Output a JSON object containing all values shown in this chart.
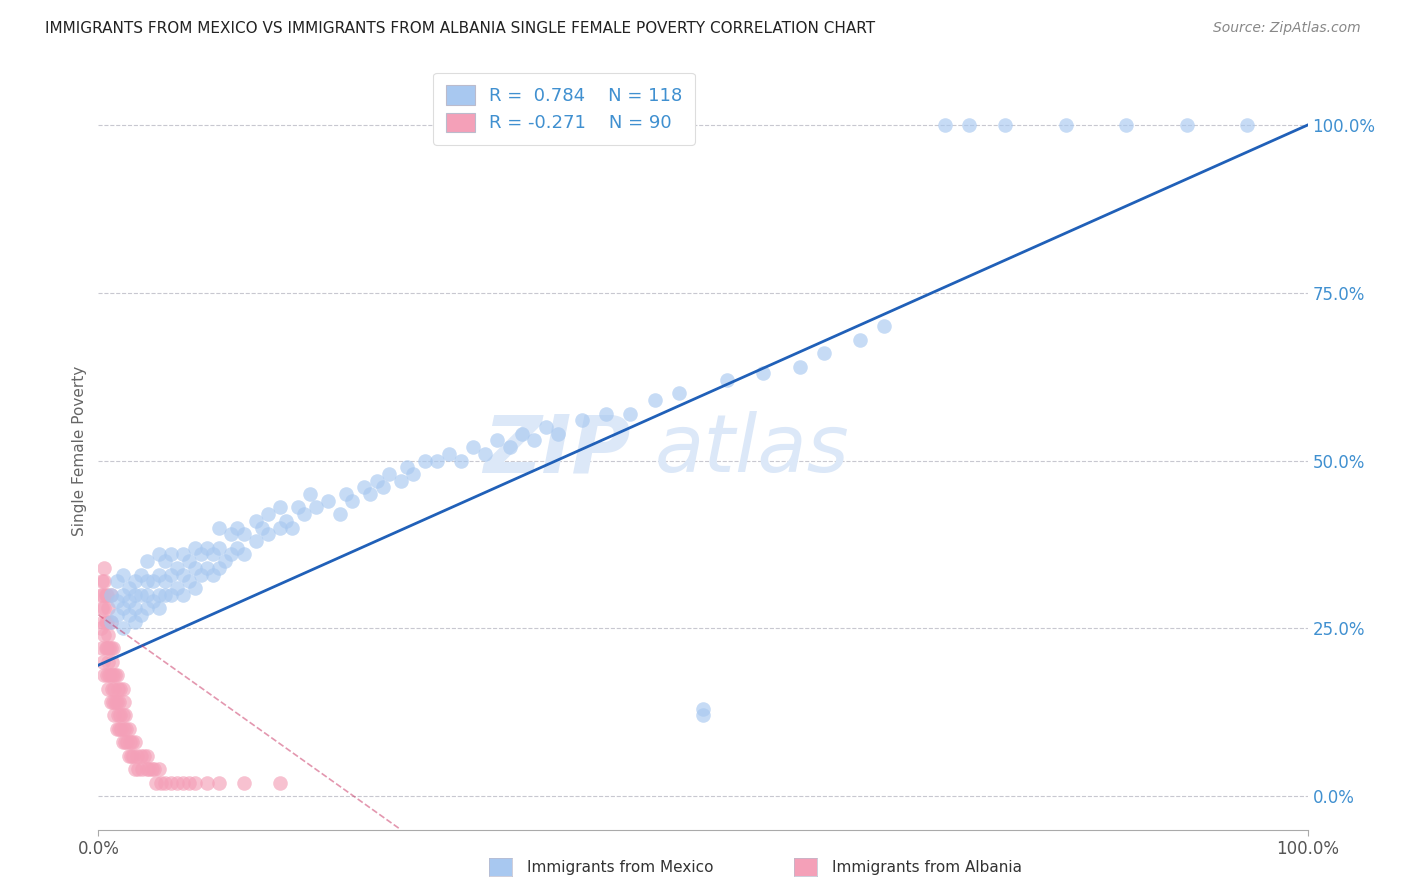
{
  "title": "IMMIGRANTS FROM MEXICO VS IMMIGRANTS FROM ALBANIA SINGLE FEMALE POVERTY CORRELATION CHART",
  "source": "Source: ZipAtlas.com",
  "ylabel": "Single Female Poverty",
  "legend_mexico": "Immigrants from Mexico",
  "legend_albania": "Immigrants from Albania",
  "R_mexico": 0.784,
  "N_mexico": 118,
  "R_albania": -0.271,
  "N_albania": 90,
  "color_mexico": "#a8c8f0",
  "color_albania": "#f4a0b8",
  "line_color_mexico": "#2060b8",
  "line_color_albania": "#c83060",
  "watermark_text": "ZIPatlas",
  "watermark_color": "#dce8f8",
  "bg_color": "#ffffff",
  "grid_color": "#c8c8d0",
  "title_color": "#222222",
  "source_color": "#888888",
  "axis_tick_color_right": "#4090d0",
  "xlim": [
    0.0,
    1.0
  ],
  "ylim": [
    -0.05,
    1.08
  ],
  "right_ytick_positions": [
    0.0,
    0.25,
    0.5,
    0.75,
    1.0
  ],
  "right_ytick_labels": [
    "0.0%",
    "25.0%",
    "50.0%",
    "75.0%",
    "100.0%"
  ],
  "bottom_xtick_labels": [
    "0.0%",
    "100.0%"
  ],
  "mexico_x": [
    0.01,
    0.01,
    0.015,
    0.015,
    0.015,
    0.02,
    0.02,
    0.02,
    0.02,
    0.025,
    0.025,
    0.025,
    0.03,
    0.03,
    0.03,
    0.03,
    0.035,
    0.035,
    0.035,
    0.04,
    0.04,
    0.04,
    0.04,
    0.045,
    0.045,
    0.05,
    0.05,
    0.05,
    0.05,
    0.055,
    0.055,
    0.055,
    0.06,
    0.06,
    0.06,
    0.065,
    0.065,
    0.07,
    0.07,
    0.07,
    0.075,
    0.075,
    0.08,
    0.08,
    0.08,
    0.085,
    0.085,
    0.09,
    0.09,
    0.095,
    0.095,
    0.1,
    0.1,
    0.1,
    0.105,
    0.11,
    0.11,
    0.115,
    0.115,
    0.12,
    0.12,
    0.13,
    0.13,
    0.135,
    0.14,
    0.14,
    0.15,
    0.15,
    0.155,
    0.16,
    0.165,
    0.17,
    0.175,
    0.18,
    0.19,
    0.2,
    0.205,
    0.21,
    0.22,
    0.225,
    0.23,
    0.235,
    0.24,
    0.25,
    0.255,
    0.26,
    0.27,
    0.28,
    0.29,
    0.3,
    0.31,
    0.32,
    0.33,
    0.34,
    0.35,
    0.36,
    0.37,
    0.38,
    0.4,
    0.42,
    0.44,
    0.46,
    0.48,
    0.5,
    0.5,
    0.52,
    0.55,
    0.58,
    0.6,
    0.63,
    0.65,
    0.7,
    0.72,
    0.75,
    0.8,
    0.85,
    0.9,
    0.95
  ],
  "mexico_y": [
    0.26,
    0.3,
    0.27,
    0.29,
    0.32,
    0.25,
    0.28,
    0.3,
    0.33,
    0.27,
    0.29,
    0.31,
    0.26,
    0.28,
    0.3,
    0.32,
    0.27,
    0.3,
    0.33,
    0.28,
    0.3,
    0.32,
    0.35,
    0.29,
    0.32,
    0.28,
    0.3,
    0.33,
    0.36,
    0.3,
    0.32,
    0.35,
    0.3,
    0.33,
    0.36,
    0.31,
    0.34,
    0.3,
    0.33,
    0.36,
    0.32,
    0.35,
    0.31,
    0.34,
    0.37,
    0.33,
    0.36,
    0.34,
    0.37,
    0.33,
    0.36,
    0.34,
    0.37,
    0.4,
    0.35,
    0.36,
    0.39,
    0.37,
    0.4,
    0.36,
    0.39,
    0.38,
    0.41,
    0.4,
    0.39,
    0.42,
    0.4,
    0.43,
    0.41,
    0.4,
    0.43,
    0.42,
    0.45,
    0.43,
    0.44,
    0.42,
    0.45,
    0.44,
    0.46,
    0.45,
    0.47,
    0.46,
    0.48,
    0.47,
    0.49,
    0.48,
    0.5,
    0.5,
    0.51,
    0.5,
    0.52,
    0.51,
    0.53,
    0.52,
    0.54,
    0.53,
    0.55,
    0.54,
    0.56,
    0.57,
    0.57,
    0.59,
    0.6,
    0.13,
    0.12,
    0.62,
    0.63,
    0.64,
    0.66,
    0.68,
    0.7,
    1.0,
    1.0,
    1.0,
    1.0,
    1.0,
    1.0,
    1.0
  ],
  "albania_x": [
    0.002,
    0.002,
    0.003,
    0.003,
    0.003,
    0.004,
    0.004,
    0.004,
    0.005,
    0.005,
    0.005,
    0.005,
    0.005,
    0.006,
    0.006,
    0.006,
    0.007,
    0.007,
    0.007,
    0.007,
    0.008,
    0.008,
    0.008,
    0.008,
    0.009,
    0.009,
    0.01,
    0.01,
    0.01,
    0.01,
    0.01,
    0.011,
    0.011,
    0.012,
    0.012,
    0.012,
    0.013,
    0.013,
    0.014,
    0.014,
    0.015,
    0.015,
    0.015,
    0.016,
    0.016,
    0.017,
    0.017,
    0.018,
    0.018,
    0.019,
    0.02,
    0.02,
    0.02,
    0.021,
    0.021,
    0.022,
    0.022,
    0.023,
    0.024,
    0.025,
    0.025,
    0.026,
    0.027,
    0.028,
    0.029,
    0.03,
    0.03,
    0.032,
    0.033,
    0.035,
    0.036,
    0.038,
    0.04,
    0.04,
    0.042,
    0.044,
    0.046,
    0.048,
    0.05,
    0.052,
    0.055,
    0.06,
    0.065,
    0.07,
    0.075,
    0.08,
    0.09,
    0.1,
    0.12,
    0.15
  ],
  "albania_y": [
    0.25,
    0.3,
    0.22,
    0.28,
    0.32,
    0.2,
    0.26,
    0.3,
    0.18,
    0.24,
    0.28,
    0.32,
    0.34,
    0.22,
    0.26,
    0.3,
    0.18,
    0.22,
    0.26,
    0.3,
    0.16,
    0.2,
    0.24,
    0.28,
    0.18,
    0.22,
    0.14,
    0.18,
    0.22,
    0.26,
    0.3,
    0.16,
    0.2,
    0.14,
    0.18,
    0.22,
    0.12,
    0.16,
    0.14,
    0.18,
    0.1,
    0.14,
    0.18,
    0.12,
    0.16,
    0.1,
    0.14,
    0.12,
    0.16,
    0.1,
    0.08,
    0.12,
    0.16,
    0.1,
    0.14,
    0.08,
    0.12,
    0.1,
    0.08,
    0.06,
    0.1,
    0.08,
    0.06,
    0.08,
    0.06,
    0.04,
    0.08,
    0.06,
    0.04,
    0.06,
    0.04,
    0.06,
    0.04,
    0.06,
    0.04,
    0.04,
    0.04,
    0.02,
    0.04,
    0.02,
    0.02,
    0.02,
    0.02,
    0.02,
    0.02,
    0.02,
    0.02,
    0.02,
    0.02,
    0.02
  ],
  "line_mexico_x0": 0.0,
  "line_mexico_y0": 0.195,
  "line_mexico_x1": 1.0,
  "line_mexico_y1": 1.0,
  "line_albania_x0": 0.0,
  "line_albania_y0": 0.27,
  "line_albania_x1": 0.25,
  "line_albania_y1": -0.05
}
